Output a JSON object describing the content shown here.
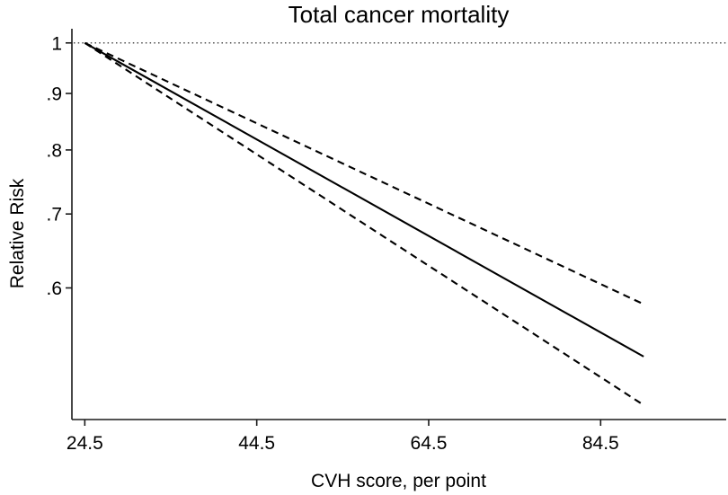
{
  "title": "Total cancer mortality",
  "axes": {
    "y_label": "Relative Risk",
    "x_label": "CVH score, per point"
  },
  "colors": {
    "line": "#000000",
    "axis": "#1a1a1a",
    "reference_line": "#4d4d4d",
    "background": "#ffffff"
  },
  "chart_data": {
    "type": "line",
    "title": "Total cancer mortality",
    "xlabel": "CVH score, per point",
    "ylabel": "Relative Risk",
    "y_scale": "log",
    "grid": false,
    "legend": "none",
    "xlim": [
      23,
      99
    ],
    "ylim": [
      0.456,
      1.03
    ],
    "x_ticks": [
      24.5,
      44.5,
      64.5,
      84.5
    ],
    "x_tick_labels": [
      "24.5",
      "44.5",
      "64.5",
      "84.5"
    ],
    "y_ticks": [
      1,
      0.9,
      0.8,
      0.7,
      0.6
    ],
    "y_tick_labels": [
      "1",
      ".9",
      ".8",
      ".7",
      ".6"
    ],
    "reference_line": {
      "y": 1,
      "style": "dotted"
    },
    "x": [
      24.5,
      89.5
    ],
    "series": [
      {
        "name": "relative-risk-estimate",
        "style": "solid",
        "values": [
          1.0,
          0.52
        ]
      },
      {
        "name": "ci-upper-bound",
        "style": "dashed",
        "values": [
          1.0,
          0.58
        ]
      },
      {
        "name": "ci-lower-bound",
        "style": "dashed",
        "values": [
          1.0,
          0.47
        ]
      }
    ]
  }
}
